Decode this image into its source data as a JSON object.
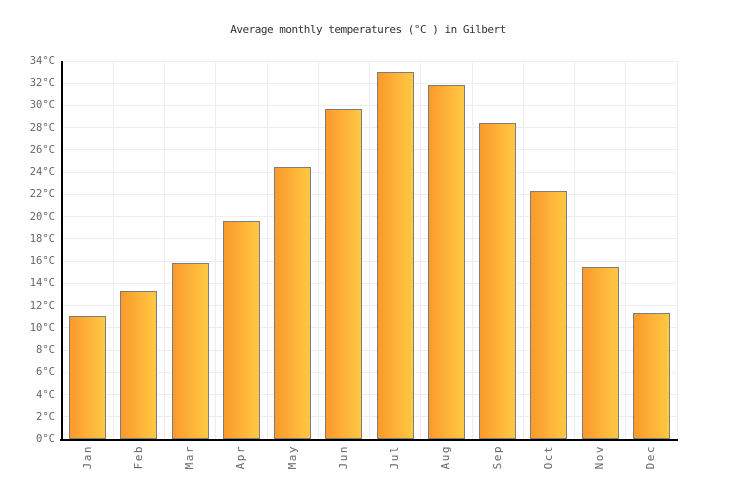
{
  "chart_data": {
    "type": "bar",
    "title": "Average monthly temperatures (°C ) in Gilbert",
    "categories": [
      "Jan",
      "Feb",
      "Mar",
      "Apr",
      "May",
      "Jun",
      "Jul",
      "Aug",
      "Sep",
      "Oct",
      "Nov",
      "Dec"
    ],
    "values": [
      11.1,
      13.3,
      15.8,
      19.6,
      24.5,
      29.7,
      33,
      31.8,
      28.4,
      22.3,
      15.5,
      11.3
    ],
    "unit": "°C",
    "xlabel": "",
    "ylabel": "",
    "ylim": [
      0,
      34
    ],
    "ytick_step": 2,
    "ytick_suffix": "°C",
    "grid": true,
    "legend": false,
    "colors": {
      "bar_gradient_left": "#fb9a2c",
      "bar_gradient_right": "#ffc843",
      "bar_border": "#7d7d7d",
      "gridline": "#ededed",
      "axis": "#000000",
      "tick_label": "#666666",
      "title": "#333333"
    }
  }
}
